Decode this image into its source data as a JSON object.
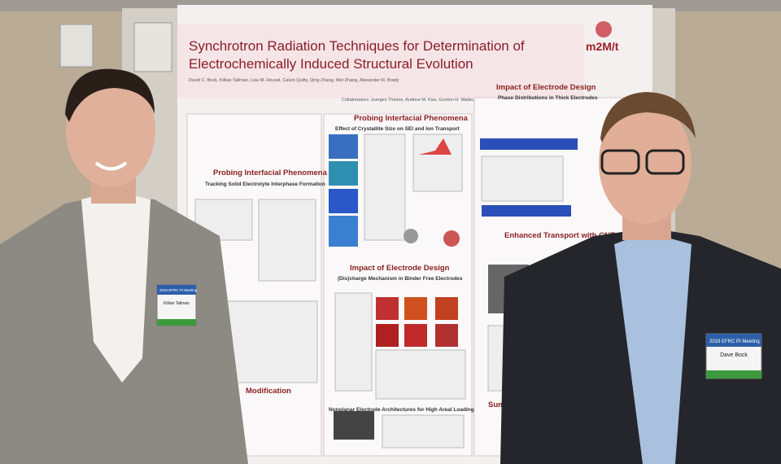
{
  "poster": {
    "title_line1": "Synchrotron Radiation Techniques for Determination of",
    "title_line2": "Electrochemically Induced Structural Evolution",
    "logo": "m2M/t",
    "authors": "David C. Bock, Killian Tallman, Lisa M. Housel, Calvin Quilty, Qing Zhang, Wei Zhang, Alexander M. Brady",
    "collaborators": "Collaborators: Juergen Thieme, Andrew M. Kiss, Gordon H. Waller, Azzam N. Mansour",
    "sections": [
      {
        "heading": "Probing Interfacial Phenomena",
        "subheading": "Tracking Solid Electrolyte Interphase Formation"
      },
      {
        "heading": "Probing Interfacial Phenomena",
        "subheading": "Effect of Crystallite Size on SEI and Ion Transport"
      },
      {
        "heading": "Impact of Electrode Design",
        "subheading": "Phase Distributions in Thick Electrodes"
      },
      {
        "heading": "Impact of Electrode Design",
        "subheading": "(Dis)charge Mechanism in Binder Free Electrodes"
      },
      {
        "heading": "Enhanced Transport with CNTs"
      },
      {
        "heading": "Nonplanar Electrode Architectures for High Areal Loading"
      },
      {
        "heading": "Modification"
      },
      {
        "heading": "Summ"
      }
    ]
  },
  "badges": [
    {
      "event": "2019 EFRC PI Meeting",
      "name": "Killian Tallman"
    },
    {
      "event": "2019 EFRC PI Meeting",
      "name": "Dave Bock"
    }
  ]
}
